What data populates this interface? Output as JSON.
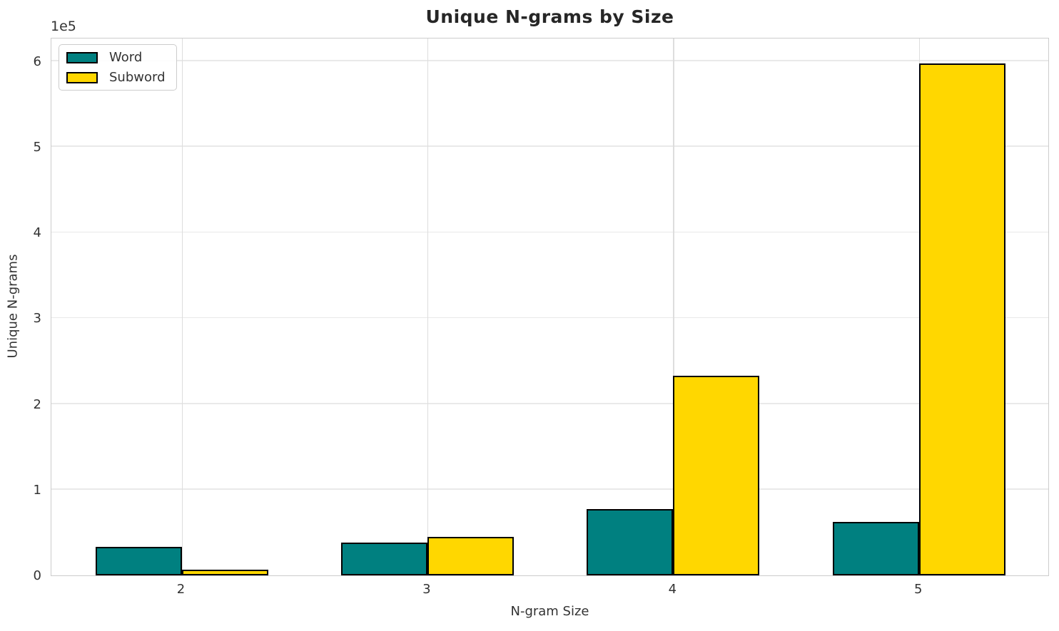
{
  "chart_data": {
    "type": "bar",
    "title": "Unique N-grams by Size",
    "xlabel": "N-gram Size",
    "ylabel": "Unique N-grams",
    "offset_text": "1e5",
    "categories": [
      "2",
      "3",
      "4",
      "5"
    ],
    "series": [
      {
        "name": "Word",
        "color": "#008080",
        "values": [
          33000,
          38000,
          77000,
          62000
        ]
      },
      {
        "name": "Subword",
        "color": "#FFD700",
        "values": [
          7000,
          45000,
          233000,
          597000
        ]
      }
    ],
    "bar_edge_color": "#000000",
    "ylim": [
      0,
      628000
    ],
    "yticks": [
      0,
      100000,
      200000,
      300000,
      400000,
      500000,
      600000
    ],
    "ytick_labels": [
      "0",
      "1",
      "2",
      "3",
      "4",
      "5",
      "6"
    ],
    "grid": "both",
    "legend_position": "upper left"
  }
}
